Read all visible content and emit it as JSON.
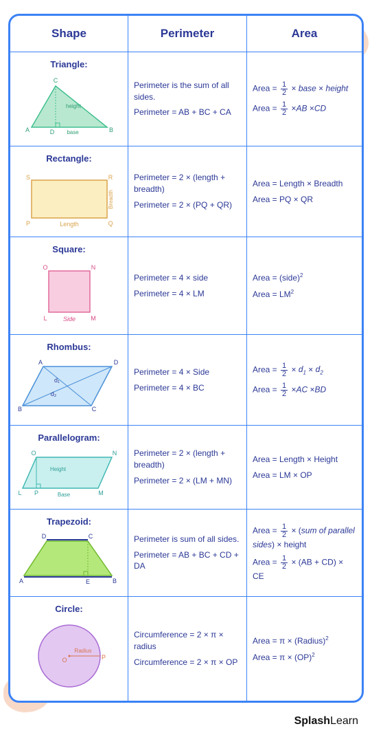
{
  "headers": {
    "shape": "Shape",
    "perimeter": "Perimeter",
    "area": "Area"
  },
  "colors": {
    "border": "#3b82f6",
    "text": "#2b3896",
    "triangle_fill": "#b9e8d0",
    "triangle_stroke": "#3fbf8f",
    "triangle_label": "#2e9e74",
    "rect_fill": "#fbeec0",
    "rect_stroke": "#d9a34a",
    "rect_label": "#d9a34a",
    "square_fill": "#f8cde0",
    "square_stroke": "#e06a9a",
    "square_label": "#d94d85",
    "rhombus_fill": "#cfe7fa",
    "rhombus_stroke": "#4a90d9",
    "para_fill": "#c9f0ee",
    "para_stroke": "#3fb8b3",
    "para_label": "#2e9e98",
    "trap_fill": "#b5e87a",
    "trap_stroke": "#6fb82e",
    "circle_fill": "#e3c8f2",
    "circle_stroke": "#a96dd4",
    "circle_label": "#d9734a",
    "blob": "#f8d9c8"
  },
  "rows": [
    {
      "title": "Triangle:",
      "labels": {
        "A": "A",
        "B": "B",
        "C": "C",
        "D": "D",
        "height": "height",
        "base": "base"
      },
      "perim": [
        "Perimeter is the sum of all sides.",
        "Perimeter = AB  + BC + CA"
      ],
      "area": [
        {
          "pre": "Area = ",
          "half": true,
          "post": " × <span class='italic'>base</span> × <span class='italic'>height</span>"
        },
        {
          "pre": "Area = ",
          "half": true,
          "post": " ×<span class='italic'>AB</span> ×<span class='italic'>CD</span>"
        }
      ]
    },
    {
      "title": "Rectangle:",
      "labels": {
        "P": "P",
        "Q": "Q",
        "R": "R",
        "S": "S",
        "Length": "Length",
        "Breadth": "Breadth"
      },
      "perim": [
        "Perimeter = 2 × (length + breadth)",
        "Perimeter = 2 × (PQ + QR)"
      ],
      "area": [
        {
          "text": "Area = Length × Breadth"
        },
        {
          "text": "Area = PQ × QR"
        }
      ]
    },
    {
      "title": "Square:",
      "labels": {
        "L": "L",
        "M": "M",
        "N": "N",
        "O": "O",
        "Side": "Side"
      },
      "perim": [
        "Perimeter = 4 × side",
        "Perimeter = 4 × LM"
      ],
      "area": [
        {
          "text": "Area = (side)<sup>2</sup>"
        },
        {
          "text": "Area = LM<sup>2</sup>"
        }
      ]
    },
    {
      "title": "Rhombus:",
      "labels": {
        "A": "A",
        "B": "B",
        "C": "C",
        "D": "D",
        "d1": "d₁",
        "d2": "d₂"
      },
      "perim": [
        "Perimeter = 4 × Side",
        "Perimeter = 4 × BC"
      ],
      "area": [
        {
          "pre": "Area = ",
          "half": true,
          "post": " × <span class='italic'>d<sub>1</sub></span> × <span class='italic'>d<sub>2</sub></span>"
        },
        {
          "pre": "Area = ",
          "half": true,
          "post": " ×<span class='italic'>AC</span> ×<span class='italic'>BD</span>"
        }
      ]
    },
    {
      "title": "Parallelogram:",
      "labels": {
        "L": "L",
        "M": "M",
        "N": "N",
        "O": "O",
        "P": "P",
        "Height": "Height",
        "Base": "Base"
      },
      "perim": [
        "Perimeter = 2 × (length + breadth)",
        "Perimeter = 2 × (LM + MN)"
      ],
      "area": [
        {
          "text": "Area = Length × Height"
        },
        {
          "text": "Area = LM × OP"
        }
      ]
    },
    {
      "title": "Trapezoid:",
      "labels": {
        "A": "A",
        "B": "B",
        "C": "C",
        "D": "D",
        "E": "E"
      },
      "perim": [
        "Perimeter is sum of all sides.",
        "Perimeter = AB + BC + CD + DA"
      ],
      "area": [
        {
          "pre": "Area = ",
          "half": true,
          "post": " × (<span class='italic'>sum of parallel sides</span>) × height"
        },
        {
          "pre": "Area = ",
          "half": true,
          "post": " × (AB + CD) × CE"
        }
      ]
    },
    {
      "title": "Circle:",
      "labels": {
        "O": "O",
        "P": "P",
        "Radius": "Radius"
      },
      "perim": [
        "Circumference = 2 × π × radius",
        "Circumference = 2 × π × OP"
      ],
      "area": [
        {
          "text": "Area = π × (Radius)<sup>2</sup>"
        },
        {
          "text": "Area = π × (OP)<sup>2</sup>"
        }
      ]
    }
  ],
  "footer": {
    "part1": "Splash",
    "part2": "Learn"
  }
}
